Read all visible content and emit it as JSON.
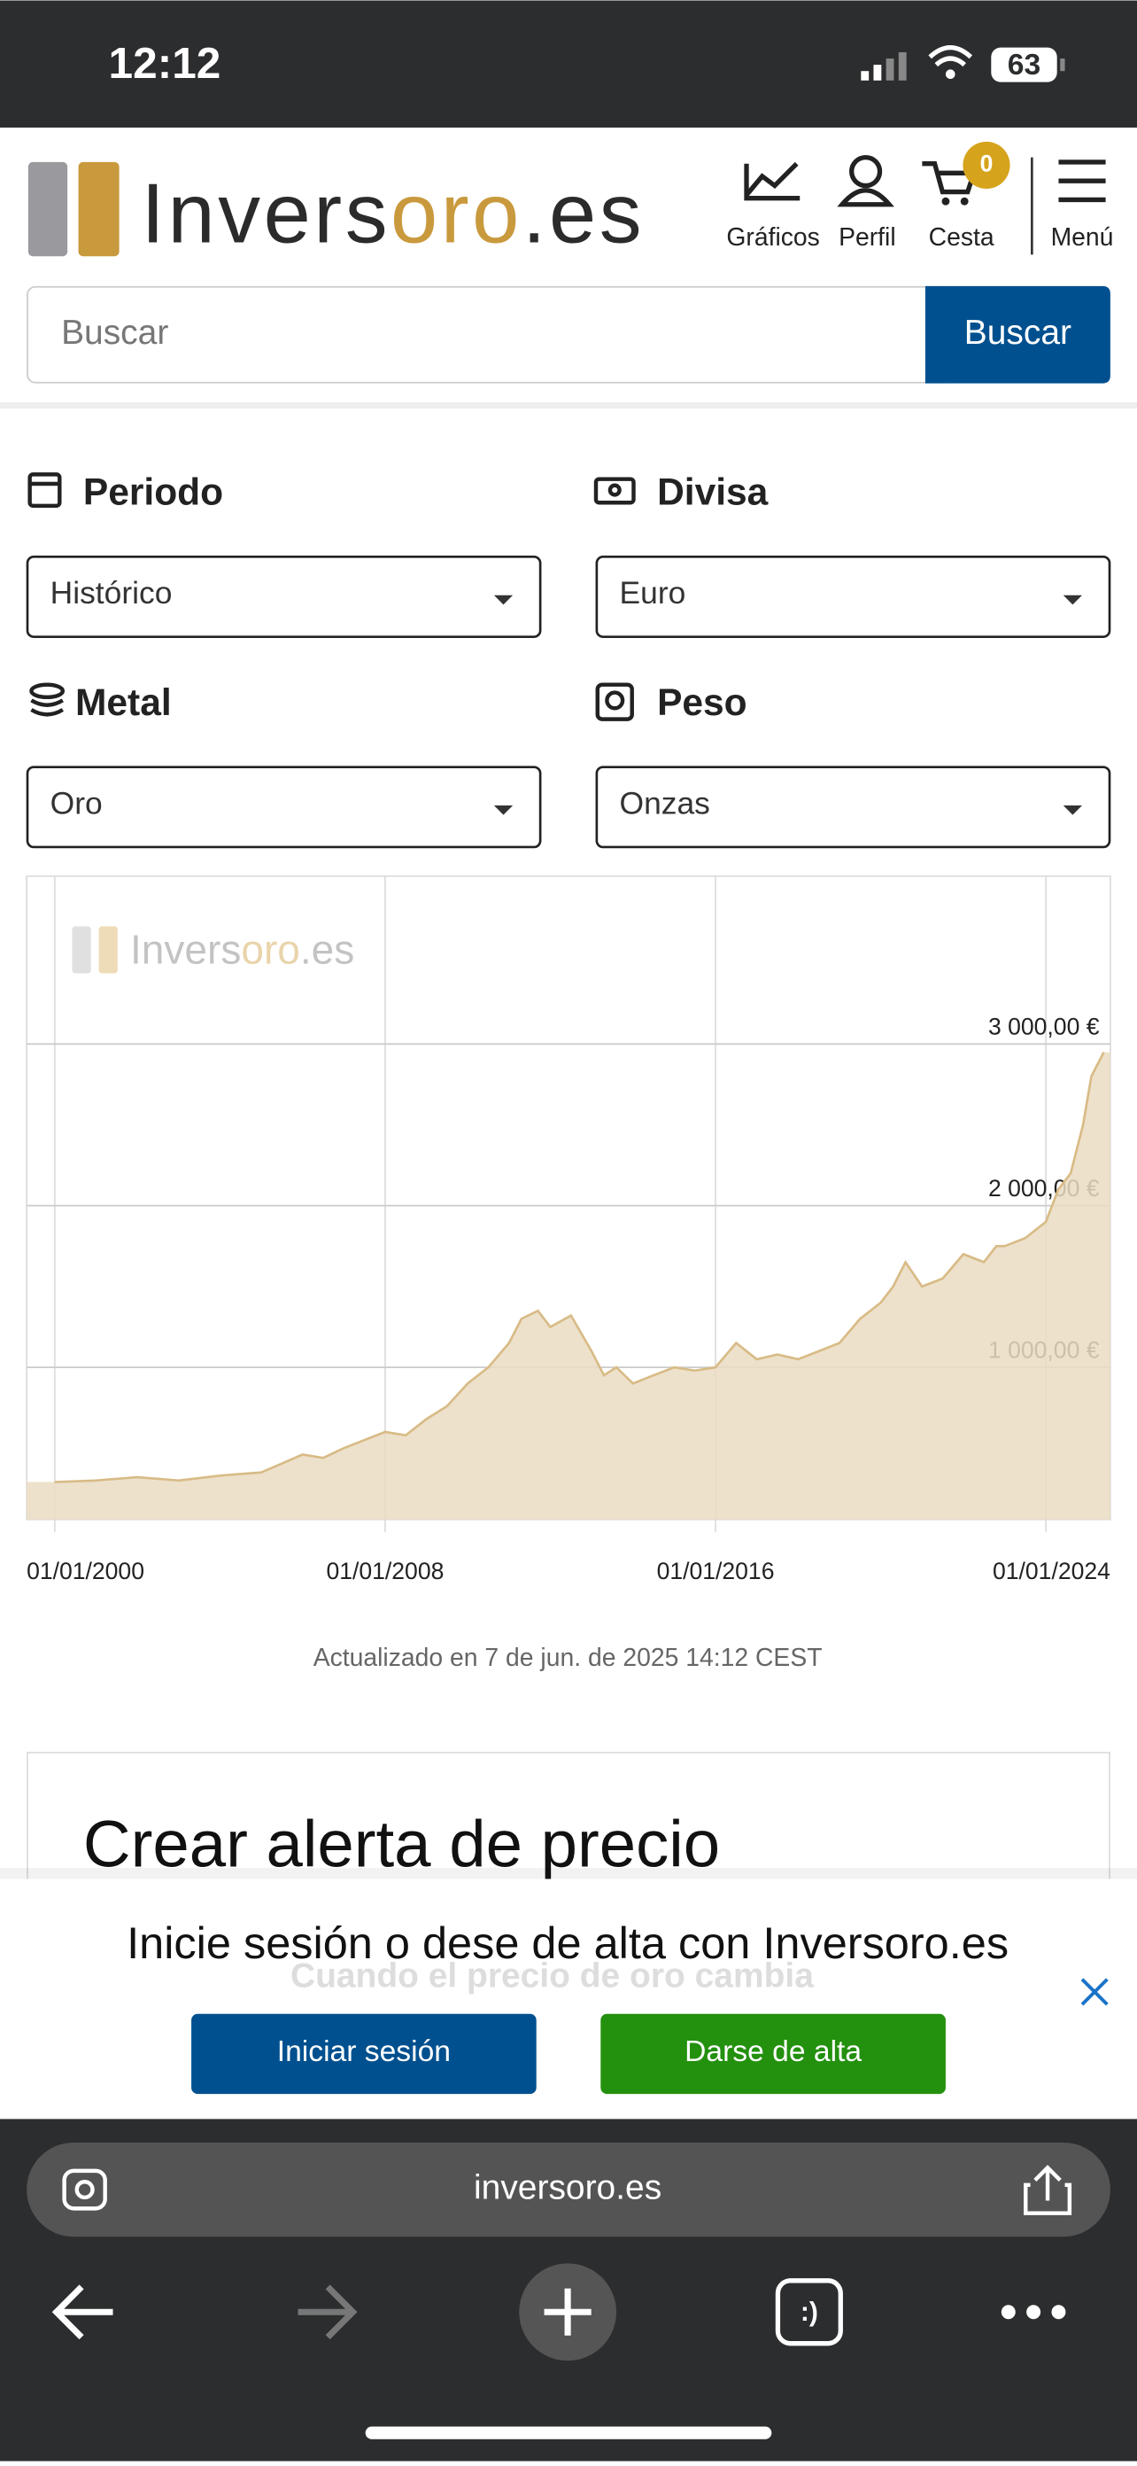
{
  "status_bar": {
    "time": "12:12",
    "battery": "63"
  },
  "header": {
    "logo": [
      "Invers",
      "oro",
      ".es"
    ],
    "nav": [
      "Gráficos",
      "Perfil",
      "Cesta",
      "Menú"
    ],
    "cart_count": "0",
    "search_placeholder": "Buscar",
    "search_button": "Buscar"
  },
  "filters": [
    {
      "label": "Periodo",
      "value": "Histórico"
    },
    {
      "label": "Divisa",
      "value": "Euro"
    },
    {
      "label": "Metal",
      "value": "Oro"
    },
    {
      "label": "Peso",
      "value": "Onzas"
    }
  ],
  "chart": {
    "type": "area",
    "watermark": [
      "Invers",
      "oro",
      ".es"
    ],
    "color": "#d8bb86",
    "fill": "#eadcc2",
    "x": [
      2000,
      2001,
      2002,
      2003,
      2004,
      2005,
      2006,
      2006.5,
      2007,
      2008,
      2008.5,
      2009,
      2009.5,
      2010,
      2010.5,
      2011,
      2011.3,
      2011.7,
      2012,
      2012.5,
      2013,
      2013.3,
      2013.6,
      2014,
      2014.5,
      2015,
      2015.5,
      2016,
      2016.5,
      2017,
      2017.5,
      2018,
      2018.5,
      2019,
      2019.5,
      2020,
      2020.3,
      2020.6,
      2021,
      2021.5,
      2022,
      2022.5,
      2022.8,
      2023,
      2023.5,
      2024,
      2024.3,
      2024.6,
      2024.9,
      2025.1,
      2025.4
    ],
    "values": [
      290,
      300,
      320,
      300,
      330,
      350,
      460,
      440,
      500,
      600,
      580,
      680,
      760,
      900,
      1000,
      1150,
      1300,
      1350,
      1250,
      1320,
      1100,
      950,
      1000,
      900,
      950,
      1000,
      980,
      1000,
      1150,
      1050,
      1080,
      1050,
      1100,
      1150,
      1300,
      1400,
      1500,
      1650,
      1500,
      1550,
      1700,
      1650,
      1750,
      1750,
      1800,
      1900,
      2100,
      2200,
      2500,
      2800,
      2950
    ],
    "xlim": [
      1999.32,
      2025.56
    ],
    "ylim": [
      0,
      4000
    ],
    "xticks": [
      {
        "value": 2000,
        "label": "01/01/2000"
      },
      {
        "value": 2008,
        "label": "01/01/2008"
      },
      {
        "value": 2016,
        "label": "01/01/2016"
      },
      {
        "value": 2024,
        "label": "01/01/2024"
      }
    ],
    "yticks": [
      {
        "value": 1000,
        "label": "1 000,00 €"
      },
      {
        "value": 2000,
        "label": "2 000,00 €"
      },
      {
        "value": 3000,
        "label": "3 000,00 €"
      }
    ],
    "grid": true
  },
  "updated": "Actualizado en 7 de jun. de 2025 14:12 CEST",
  "alert_card": {
    "title": "Crear alerta de precio",
    "subtitle": "Cuando el precio de oro cambia"
  },
  "login_banner": {
    "text": "Inicie sesión o dese de alta con Inversoro.es",
    "login": "Iniciar sesión",
    "signup": "Darse de alta"
  },
  "browser": {
    "url": "inversoro.es"
  }
}
